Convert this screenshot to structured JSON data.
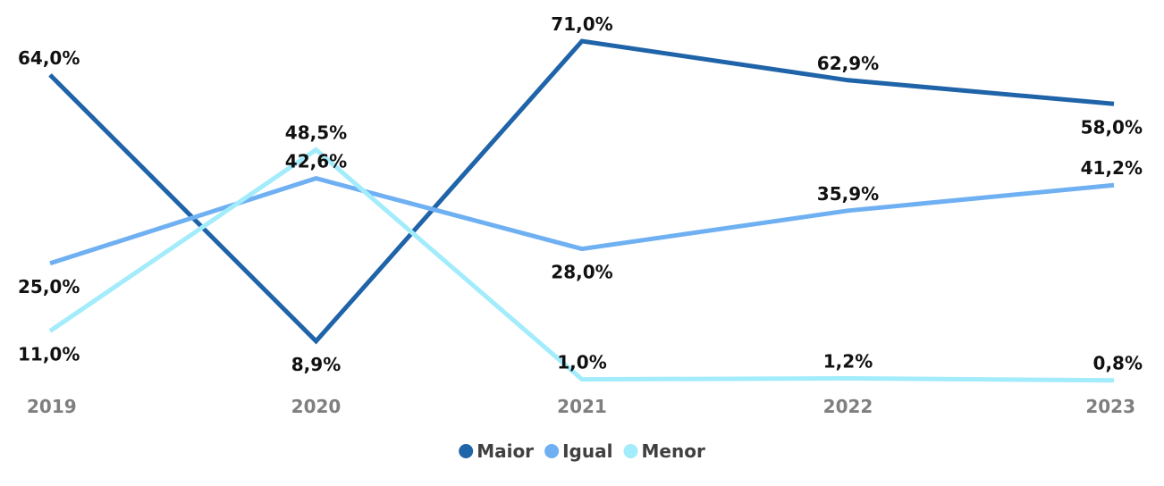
{
  "chart_data": {
    "type": "line",
    "title": "",
    "xlabel": "",
    "ylabel": "",
    "categories": [
      "2019",
      "2020",
      "2021",
      "2022",
      "2023"
    ],
    "ylim": [
      0,
      75
    ],
    "grid": false,
    "legend_position": "bottom",
    "series": [
      {
        "name": "Maior",
        "color": "#1f63a8",
        "values": [
          64.0,
          8.9,
          71.0,
          62.9,
          58.0
        ],
        "labels": [
          "64,0%",
          "8,9%",
          "71,0%",
          "62,9%",
          "58,0%"
        ]
      },
      {
        "name": "Igual",
        "color": "#6fb0f2",
        "values": [
          25.0,
          42.6,
          28.0,
          35.9,
          41.2
        ],
        "labels": [
          "25,0%",
          "42,6%",
          "28,0%",
          "35,9%",
          "41,2%"
        ]
      },
      {
        "name": "Menor",
        "color": "#a2ecfb",
        "values": [
          11.0,
          48.5,
          1.0,
          1.2,
          0.8
        ],
        "labels": [
          "11,0%",
          "48,5%",
          "1,0%",
          "1,2%",
          "0,8%"
        ]
      }
    ]
  }
}
